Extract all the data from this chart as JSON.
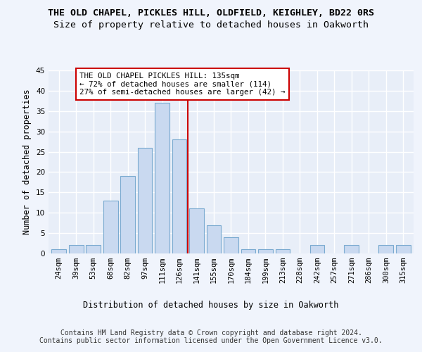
{
  "title1": "THE OLD CHAPEL, PICKLES HILL, OLDFIELD, KEIGHLEY, BD22 0RS",
  "title2": "Size of property relative to detached houses in Oakworth",
  "xlabel": "Distribution of detached houses by size in Oakworth",
  "ylabel": "Number of detached properties",
  "categories": [
    "24sqm",
    "39sqm",
    "53sqm",
    "68sqm",
    "82sqm",
    "97sqm",
    "111sqm",
    "126sqm",
    "141sqm",
    "155sqm",
    "170sqm",
    "184sqm",
    "199sqm",
    "213sqm",
    "228sqm",
    "242sqm",
    "257sqm",
    "271sqm",
    "286sqm",
    "300sqm",
    "315sqm"
  ],
  "values": [
    1,
    2,
    2,
    13,
    19,
    26,
    37,
    28,
    11,
    7,
    4,
    1,
    1,
    1,
    0,
    2,
    0,
    2,
    0,
    2,
    2
  ],
  "bar_color": "#c9d9f0",
  "bar_edge_color": "#7aaad0",
  "vline_color": "#cc0000",
  "annotation_text": "THE OLD CHAPEL PICKLES HILL: 135sqm\n← 72% of detached houses are smaller (114)\n27% of semi-detached houses are larger (42) →",
  "annotation_box_color": "#cc0000",
  "ylim": [
    0,
    45
  ],
  "yticks": [
    0,
    5,
    10,
    15,
    20,
    25,
    30,
    35,
    40,
    45
  ],
  "footer": "Contains HM Land Registry data © Crown copyright and database right 2024.\nContains public sector information licensed under the Open Government Licence v3.0.",
  "bg_color": "#e8eef8",
  "grid_color": "#ffffff",
  "fig_bg_color": "#f0f4fc",
  "title_fontsize": 9.5,
  "subtitle_fontsize": 9.5,
  "axis_label_fontsize": 8.5,
  "tick_fontsize": 7.5,
  "footer_fontsize": 7.0
}
